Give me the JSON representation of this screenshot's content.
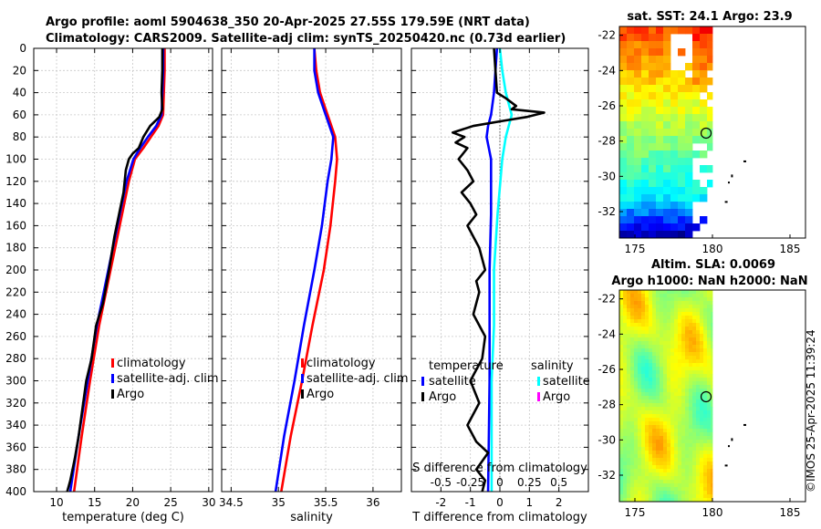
{
  "title_line1": "Argo profile: aoml 5904638_350 20-Apr-2025 27.55S 179.59E (NRT data)",
  "title_line2": "Climatology: CARS2009. Satellite-adj clim: synTS_20250420.nc (0.73d earlier)",
  "sst_map_title": "sat. SST: 24.1 Argo: 23.9",
  "sla_map_title_1": "Altim. SLA: 0.0069",
  "sla_map_title_2": "Argo h1000: NaN h2000: NaN",
  "credit": "©IMOS 25-Apr-2025 11:39:24",
  "colors": {
    "climatology": "#ff0000",
    "satellite": "#0000ff",
    "argo": "#000000",
    "sat_salinity": "#00ffff",
    "argo_salinity": "#ff00ff"
  },
  "chart_data": [
    {
      "type": "line",
      "name": "temperature-profile",
      "xlabel": "temperature (deg C)",
      "ylabel": "",
      "xlim": [
        7,
        30.5
      ],
      "ylim": [
        400,
        0
      ],
      "xticks": [
        10,
        15,
        20,
        25,
        30
      ],
      "yticks": [
        0,
        20,
        40,
        60,
        80,
        100,
        120,
        140,
        160,
        180,
        200,
        220,
        240,
        260,
        280,
        300,
        320,
        340,
        360,
        380,
        400
      ],
      "legend": [
        "climatology",
        "satellite-adj. clim",
        "Argo"
      ],
      "series": [
        {
          "name": "climatology",
          "depth": [
            0,
            20,
            40,
            60,
            70,
            80,
            90,
            100,
            120,
            150,
            200,
            250,
            300,
            350,
            400
          ],
          "values": [
            24.2,
            24.2,
            24.1,
            24.0,
            23.4,
            22.4,
            21.4,
            20.3,
            19.5,
            18.6,
            17.1,
            15.6,
            14.4,
            13.3,
            12.3
          ]
        },
        {
          "name": "satellite-adj. clim",
          "depth": [
            0,
            20,
            40,
            60,
            70,
            80,
            90,
            100,
            120,
            150,
            200,
            250,
            300,
            350,
            400
          ],
          "values": [
            24.0,
            24.0,
            23.9,
            23.8,
            23.1,
            22.0,
            21.0,
            20.1,
            19.2,
            18.3,
            16.8,
            15.3,
            14.1,
            12.9,
            11.8
          ]
        },
        {
          "name": "Argo",
          "depth": [
            0,
            20,
            40,
            55,
            62,
            70,
            80,
            90,
            95,
            100,
            110,
            130,
            150,
            170,
            200,
            230,
            250,
            280,
            300,
            330,
            350,
            370,
            390,
            400
          ],
          "values": [
            23.9,
            23.9,
            23.8,
            23.9,
            23.5,
            22.3,
            21.4,
            20.8,
            20.0,
            19.5,
            19.1,
            18.8,
            18.2,
            17.6,
            16.9,
            16.1,
            15.2,
            14.6,
            13.9,
            13.3,
            12.9,
            12.4,
            11.8,
            11.4
          ]
        }
      ]
    },
    {
      "type": "line",
      "name": "salinity-profile",
      "xlabel": "salinity",
      "ylabel": "",
      "xlim": [
        34.4,
        36.3
      ],
      "ylim": [
        400,
        0
      ],
      "xticks": [
        34.5,
        35,
        35.5,
        36
      ],
      "legend": [
        "climatology",
        "satellite-adj. clim",
        "Argo"
      ],
      "series": [
        {
          "name": "climatology",
          "depth": [
            0,
            20,
            40,
            60,
            80,
            100,
            120,
            160,
            200,
            250,
            300,
            350,
            400
          ],
          "values": [
            35.38,
            35.4,
            35.44,
            35.52,
            35.6,
            35.62,
            35.6,
            35.55,
            35.48,
            35.36,
            35.25,
            35.13,
            35.03
          ]
        },
        {
          "name": "satellite-adj. clim",
          "depth": [
            0,
            20,
            40,
            60,
            80,
            100,
            120,
            160,
            200,
            250,
            300,
            350,
            400
          ],
          "values": [
            35.38,
            35.38,
            35.42,
            35.5,
            35.58,
            35.56,
            35.52,
            35.46,
            35.38,
            35.27,
            35.17,
            35.06,
            34.97
          ]
        },
        {
          "name": "Argo",
          "depth": [],
          "values": []
        }
      ]
    },
    {
      "type": "line",
      "name": "difference-profile",
      "xlabel": "T difference from climatology",
      "xlabel_top": "S difference from climatology",
      "xlim": [
        -3,
        3
      ],
      "ylim": [
        400,
        0
      ],
      "xticks": [
        -2,
        -1,
        0,
        1,
        2
      ],
      "xticks_s": [
        "-0.5",
        "-0.25",
        "0",
        "0.25",
        "0.5"
      ],
      "legend_temperature": "temperature",
      "legend_salinity": "salinity",
      "legend_items": [
        "satellite",
        "Argo"
      ],
      "series": [
        {
          "name": "temperature satellite",
          "depth": [
            0,
            20,
            40,
            60,
            70,
            80,
            100,
            150,
            200,
            300,
            400
          ],
          "values": [
            -0.1,
            -0.15,
            -0.2,
            -0.3,
            -0.4,
            -0.45,
            -0.3,
            -0.3,
            -0.35,
            -0.35,
            -0.4
          ]
        },
        {
          "name": "salinity satellite",
          "depth": [
            0,
            20,
            40,
            60,
            80,
            100,
            150,
            200,
            250,
            300,
            350,
            400
          ],
          "values": [
            0.0,
            0.02,
            0.05,
            0.1,
            0.05,
            0.02,
            -0.02,
            -0.05,
            -0.05,
            -0.07,
            -0.07,
            -0.07
          ]
        },
        {
          "name": "temperature Argo",
          "depth": [
            0,
            20,
            40,
            45,
            52,
            55,
            58,
            62,
            65,
            70,
            76,
            80,
            85,
            90,
            100,
            110,
            120,
            130,
            140,
            150,
            160,
            180,
            200,
            210,
            220,
            240,
            260,
            280,
            300,
            320,
            340,
            355,
            365,
            380,
            390,
            400
          ],
          "values": [
            -0.2,
            -0.15,
            -0.1,
            0.2,
            0.55,
            0.4,
            1.5,
            0.9,
            0.2,
            -0.9,
            -1.6,
            -1.2,
            -1.5,
            -1.1,
            -1.4,
            -1.1,
            -0.9,
            -1.3,
            -1.0,
            -0.8,
            -1.1,
            -0.7,
            -0.5,
            -0.8,
            -0.7,
            -0.9,
            -0.5,
            -0.6,
            -1.0,
            -0.7,
            -1.1,
            -0.8,
            -0.4,
            -0.8,
            -0.5,
            -0.6
          ]
        }
      ]
    },
    {
      "type": "heatmap",
      "name": "sst-map",
      "title": "sat. SST: 24.1 Argo: 23.9",
      "xticks": [
        175,
        180,
        185
      ],
      "yticks": [
        -22,
        -24,
        -26,
        -28,
        -30,
        -32
      ],
      "xlim": [
        174,
        186
      ],
      "ylim": [
        -33.5,
        -21.5
      ],
      "argo_location": {
        "lon": 179.59,
        "lat": -27.55
      }
    },
    {
      "type": "heatmap",
      "name": "sla-map",
      "title": "Altim. SLA: 0.0069",
      "xticks": [
        175,
        180,
        185
      ],
      "yticks": [
        -22,
        -24,
        -26,
        -28,
        -30,
        -32
      ],
      "xlim": [
        174,
        186
      ],
      "ylim": [
        -33.5,
        -21.5
      ],
      "argo_location": {
        "lon": 179.59,
        "lat": -27.55
      }
    }
  ]
}
